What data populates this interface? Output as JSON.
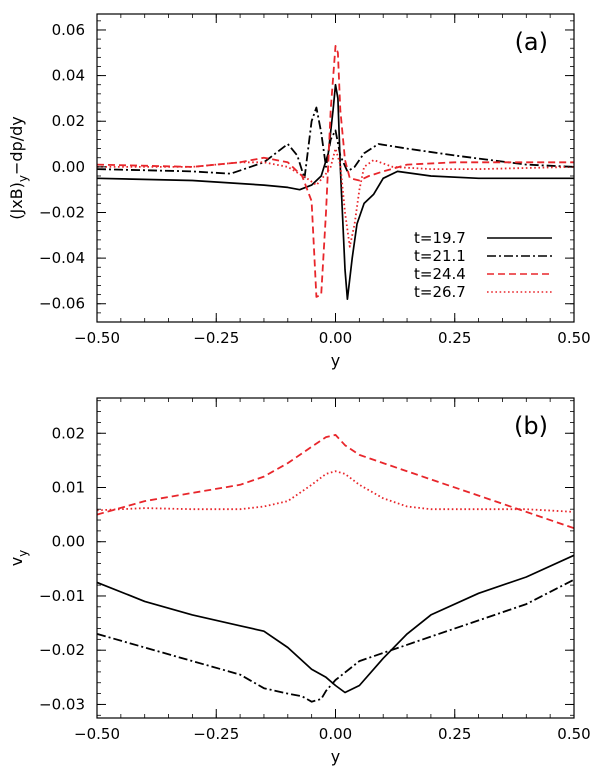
{
  "chart_data": [
    {
      "type": "line",
      "panel_label": "(a)",
      "xlabel": "y",
      "ylabel": "(JxB)y−dp/dy",
      "xlim": [
        -0.5,
        0.5
      ],
      "ylim": [
        -0.068,
        0.067
      ],
      "xticks": [
        -0.5,
        -0.25,
        0.0,
        0.25,
        0.5
      ],
      "xtick_labels": [
        "−0.50",
        "−0.25",
        "0.00",
        "0.25",
        "0.50"
      ],
      "yticks": [
        -0.06,
        -0.04,
        -0.02,
        0.0,
        0.02,
        0.04,
        0.06
      ],
      "ytick_labels": [
        "−0.06",
        "−0.04",
        "−0.02",
        "0.00",
        "0.02",
        "0.04",
        "0.06"
      ],
      "legend_position": "lower-right",
      "series": [
        {
          "name": "t=19.7",
          "color": "#000000",
          "dash": "solid",
          "x": [
            -0.5,
            -0.3,
            -0.15,
            -0.1,
            -0.075,
            -0.05,
            -0.03,
            -0.015,
            -0.005,
            0.0,
            0.005,
            0.01,
            0.02,
            0.025,
            0.035,
            0.045,
            0.06,
            0.08,
            0.1,
            0.13,
            0.2,
            0.3,
            0.5
          ],
          "y": [
            -0.005,
            -0.006,
            -0.008,
            -0.009,
            -0.01,
            -0.008,
            -0.004,
            0.006,
            0.025,
            0.036,
            0.03,
            0.0,
            -0.045,
            -0.058,
            -0.04,
            -0.025,
            -0.016,
            -0.012,
            -0.005,
            -0.002,
            -0.004,
            -0.005,
            -0.005
          ]
        },
        {
          "name": "t=21.1",
          "color": "#000000",
          "dash": "dashdot",
          "x": [
            -0.5,
            -0.3,
            -0.22,
            -0.15,
            -0.1,
            -0.08,
            -0.065,
            -0.05,
            -0.04,
            -0.03,
            -0.02,
            -0.01,
            0.0,
            0.01,
            0.025,
            0.04,
            0.06,
            0.09,
            0.15,
            0.25,
            0.4,
            0.5
          ],
          "y": [
            -0.001,
            -0.002,
            -0.003,
            0.002,
            0.01,
            0.005,
            -0.005,
            0.02,
            0.026,
            0.015,
            0.0,
            0.012,
            0.016,
            0.005,
            -0.002,
            0.0,
            0.006,
            0.01,
            0.008,
            0.005,
            0.001,
            0.0
          ]
        },
        {
          "name": "t=24.4",
          "color": "#e8262b",
          "dash": "dashed",
          "x": [
            -0.5,
            -0.3,
            -0.2,
            -0.15,
            -0.1,
            -0.07,
            -0.05,
            -0.04,
            -0.03,
            -0.02,
            -0.01,
            0.0,
            0.005,
            0.01,
            0.02,
            0.03,
            0.05,
            0.07,
            0.1,
            0.15,
            0.25,
            0.5
          ],
          "y": [
            0.001,
            0.0,
            0.002,
            0.004,
            0.002,
            -0.004,
            -0.015,
            -0.057,
            -0.056,
            -0.02,
            0.025,
            0.053,
            0.05,
            0.025,
            0.003,
            -0.005,
            -0.006,
            -0.004,
            -0.002,
            0.001,
            0.002,
            0.002
          ]
        },
        {
          "name": "t=26.7",
          "color": "#e8262b",
          "dash": "dotted",
          "x": [
            -0.5,
            -0.3,
            -0.2,
            -0.15,
            -0.1,
            -0.06,
            -0.04,
            -0.02,
            -0.01,
            0.0,
            0.01,
            0.02,
            0.03,
            0.04,
            0.05,
            0.06,
            0.08,
            0.12,
            0.2,
            0.3,
            0.5
          ],
          "y": [
            0.0,
            0.0,
            0.002,
            0.002,
            0.0,
            -0.005,
            -0.008,
            -0.003,
            0.0,
            0.008,
            0.001,
            -0.02,
            -0.035,
            -0.025,
            -0.01,
            0.0,
            0.003,
            0.0,
            -0.001,
            -0.001,
            0.0
          ]
        }
      ]
    },
    {
      "type": "line",
      "panel_label": "(b)",
      "xlabel": "y",
      "ylabel": "vy",
      "xlim": [
        -0.5,
        0.5
      ],
      "ylim": [
        -0.0325,
        0.0265
      ],
      "xticks": [
        -0.5,
        -0.25,
        0.0,
        0.25,
        0.5
      ],
      "xtick_labels": [
        "−0.50",
        "−0.25",
        "0.00",
        "0.25",
        "0.50"
      ],
      "yticks": [
        -0.03,
        -0.02,
        -0.01,
        0.0,
        0.01,
        0.02
      ],
      "ytick_labels": [
        "−0.03",
        "−0.02",
        "−0.01",
        "0.00",
        "0.01",
        "0.02"
      ],
      "series": [
        {
          "name": "t=19.7",
          "color": "#000000",
          "dash": "solid",
          "x": [
            -0.5,
            -0.4,
            -0.3,
            -0.2,
            -0.15,
            -0.1,
            -0.05,
            -0.02,
            0.0,
            0.02,
            0.05,
            0.1,
            0.15,
            0.2,
            0.3,
            0.4,
            0.5
          ],
          "y": [
            -0.0075,
            -0.011,
            -0.0135,
            -0.0155,
            -0.0165,
            -0.0195,
            -0.0235,
            -0.025,
            -0.0265,
            -0.0278,
            -0.0265,
            -0.0215,
            -0.017,
            -0.0135,
            -0.0095,
            -0.0065,
            -0.0025
          ]
        },
        {
          "name": "t=21.1",
          "color": "#000000",
          "dash": "dashdot",
          "x": [
            -0.5,
            -0.4,
            -0.3,
            -0.2,
            -0.15,
            -0.1,
            -0.07,
            -0.05,
            -0.03,
            -0.02,
            0.0,
            0.05,
            0.1,
            0.15,
            0.2,
            0.3,
            0.4,
            0.5
          ],
          "y": [
            -0.017,
            -0.0195,
            -0.022,
            -0.0245,
            -0.027,
            -0.028,
            -0.0285,
            -0.0295,
            -0.029,
            -0.0275,
            -0.0255,
            -0.022,
            -0.0205,
            -0.019,
            -0.0175,
            -0.0145,
            -0.0115,
            -0.007
          ]
        },
        {
          "name": "t=24.4",
          "color": "#e8262b",
          "dash": "dashed",
          "x": [
            -0.5,
            -0.4,
            -0.3,
            -0.2,
            -0.15,
            -0.1,
            -0.05,
            -0.02,
            0.0,
            0.02,
            0.05,
            0.1,
            0.2,
            0.3,
            0.4,
            0.5
          ],
          "y": [
            0.005,
            0.0075,
            0.009,
            0.0105,
            0.012,
            0.0145,
            0.0175,
            0.0193,
            0.0197,
            0.0178,
            0.016,
            0.0145,
            0.0115,
            0.0085,
            0.0055,
            0.0025
          ]
        },
        {
          "name": "t=26.7",
          "color": "#e8262b",
          "dash": "dotted",
          "x": [
            -0.5,
            -0.4,
            -0.3,
            -0.2,
            -0.15,
            -0.1,
            -0.05,
            -0.02,
            0.0,
            0.02,
            0.05,
            0.1,
            0.15,
            0.2,
            0.3,
            0.4,
            0.5
          ],
          "y": [
            0.0058,
            0.0062,
            0.006,
            0.006,
            0.0065,
            0.0075,
            0.0105,
            0.0125,
            0.013,
            0.0125,
            0.0105,
            0.008,
            0.0065,
            0.006,
            0.006,
            0.006,
            0.0055
          ]
        }
      ]
    }
  ]
}
